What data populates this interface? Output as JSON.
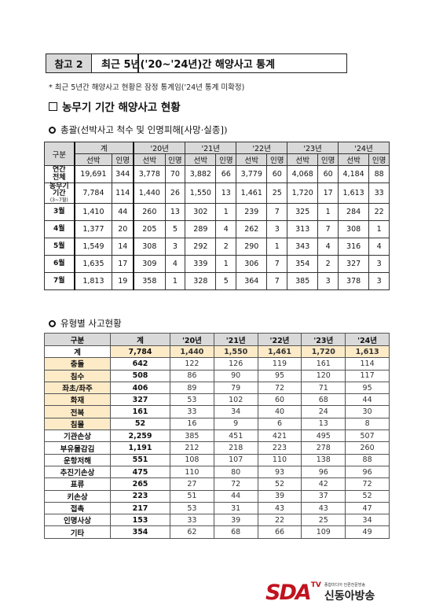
{
  "header": {
    "tag": "참고 2",
    "title": "최근 5년('20~'24년)간 해양사고 통계"
  },
  "note": "* 최근 5년간 해양사고 현황은 잠정 통계임('24년 통계 미확정)",
  "section_title": "농무기 기간 해양사고 현황",
  "subtitle1": "총괄(선박사고 척수 및 인명피해[사망·실종])",
  "subtitle2": "유형별 사고현황",
  "table1": {
    "h_category": "구분",
    "h_years": [
      "계",
      "'20년",
      "'21년",
      "'22년",
      "'23년",
      "'24년"
    ],
    "h_ship": "선박",
    "h_person": "인명",
    "rows": [
      {
        "label": "연간\n전체",
        "label_line1": "연간",
        "label_line2": "전체",
        "small": "",
        "values": [
          "19,691",
          "344",
          "3,778",
          "70",
          "3,882",
          "66",
          "3,779",
          "60",
          "4,068",
          "60",
          "4,184",
          "88"
        ]
      },
      {
        "label_line1": "농무기",
        "label_line2": "기간",
        "small": "(3~7월)",
        "values": [
          "7,784",
          "114",
          "1,440",
          "26",
          "1,550",
          "13",
          "1,461",
          "25",
          "1,720",
          "17",
          "1,613",
          "33"
        ]
      },
      {
        "label_line1": "3월",
        "label_line2": "",
        "small": "",
        "values": [
          "1,410",
          "44",
          "260",
          "13",
          "302",
          "1",
          "239",
          "7",
          "325",
          "1",
          "284",
          "22"
        ]
      },
      {
        "label_line1": "4월",
        "label_line2": "",
        "small": "",
        "values": [
          "1,377",
          "20",
          "205",
          "5",
          "289",
          "4",
          "262",
          "3",
          "313",
          "7",
          "308",
          "1"
        ]
      },
      {
        "label_line1": "5월",
        "label_line2": "",
        "small": "",
        "values": [
          "1,549",
          "14",
          "308",
          "3",
          "292",
          "2",
          "290",
          "1",
          "343",
          "4",
          "316",
          "4"
        ]
      },
      {
        "label_line1": "6월",
        "label_line2": "",
        "small": "",
        "values": [
          "1,635",
          "17",
          "309",
          "4",
          "339",
          "1",
          "306",
          "7",
          "354",
          "2",
          "327",
          "3"
        ]
      },
      {
        "label_line1": "7월",
        "label_line2": "",
        "small": "",
        "values": [
          "1,813",
          "19",
          "358",
          "1",
          "328",
          "5",
          "364",
          "7",
          "385",
          "3",
          "378",
          "3"
        ]
      }
    ]
  },
  "table2": {
    "headers": [
      "구분",
      "계",
      "'20년",
      "'21년",
      "'22년",
      "'23년",
      "'24년"
    ],
    "rows": [
      {
        "cat": "계",
        "values": [
          "7,784",
          "1,440",
          "1,550",
          "1,461",
          "1,720",
          "1,613"
        ]
      },
      {
        "cat": "충돌",
        "values": [
          "642",
          "122",
          "126",
          "119",
          "161",
          "114"
        ]
      },
      {
        "cat": "침수",
        "values": [
          "508",
          "86",
          "90",
          "95",
          "120",
          "117"
        ]
      },
      {
        "cat": "좌초/좌주",
        "values": [
          "406",
          "89",
          "79",
          "72",
          "71",
          "95"
        ]
      },
      {
        "cat": "화재",
        "values": [
          "327",
          "53",
          "102",
          "60",
          "68",
          "44"
        ]
      },
      {
        "cat": "전복",
        "values": [
          "161",
          "33",
          "34",
          "40",
          "24",
          "30"
        ]
      },
      {
        "cat": "침몰",
        "values": [
          "52",
          "16",
          "9",
          "6",
          "13",
          "8"
        ]
      },
      {
        "cat": "기관손상",
        "values": [
          "2,259",
          "385",
          "451",
          "421",
          "495",
          "507"
        ]
      },
      {
        "cat": "부유물감김",
        "values": [
          "1,191",
          "212",
          "218",
          "223",
          "278",
          "260"
        ]
      },
      {
        "cat": "운항저해",
        "values": [
          "551",
          "108",
          "107",
          "110",
          "138",
          "88"
        ]
      },
      {
        "cat": "추진기손상",
        "values": [
          "475",
          "110",
          "80",
          "93",
          "96",
          "96"
        ]
      },
      {
        "cat": "표류",
        "values": [
          "265",
          "27",
          "72",
          "52",
          "42",
          "72"
        ]
      },
      {
        "cat": "키손상",
        "values": [
          "223",
          "51",
          "44",
          "39",
          "37",
          "52"
        ]
      },
      {
        "cat": "접촉",
        "values": [
          "217",
          "53",
          "31",
          "43",
          "43",
          "47"
        ]
      },
      {
        "cat": "인명사상",
        "values": [
          "153",
          "33",
          "39",
          "22",
          "25",
          "34"
        ]
      },
      {
        "cat": "기타",
        "values": [
          "354",
          "62",
          "68",
          "66",
          "109",
          "49"
        ]
      }
    ]
  },
  "logo": {
    "mark": "SDA",
    "tv": "TV",
    "small": "종합미디어 언론전문방송",
    "name": "신동아방송"
  }
}
